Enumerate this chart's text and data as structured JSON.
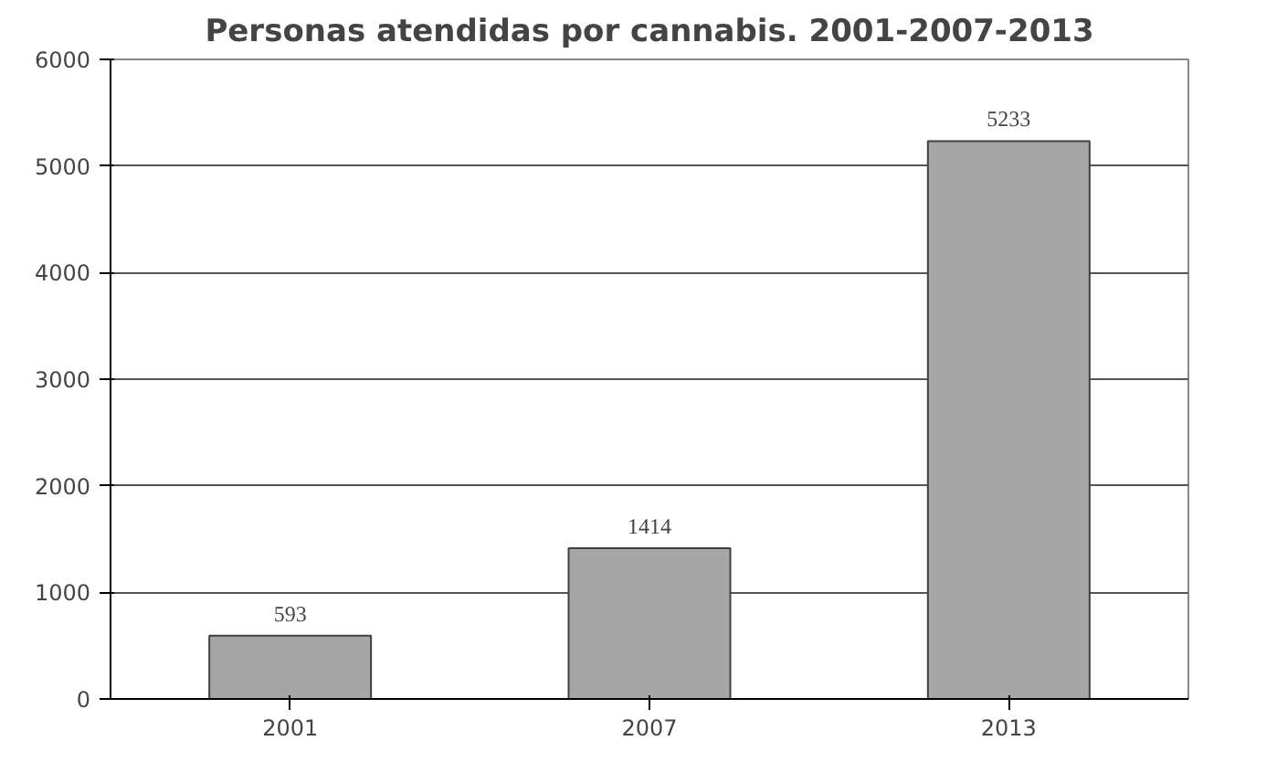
{
  "chart_data": {
    "type": "bar",
    "title": "Personas atendidas por cannabis. 2001-2007-2013",
    "categories": [
      "2001",
      "2007",
      "2013"
    ],
    "values": [
      593,
      1414,
      5233
    ],
    "color": "#a6a6a6",
    "ylim": [
      0,
      6000
    ],
    "yticks": [
      0,
      1000,
      2000,
      3000,
      4000,
      5000,
      6000
    ],
    "grid": "y",
    "data_labels": true
  }
}
